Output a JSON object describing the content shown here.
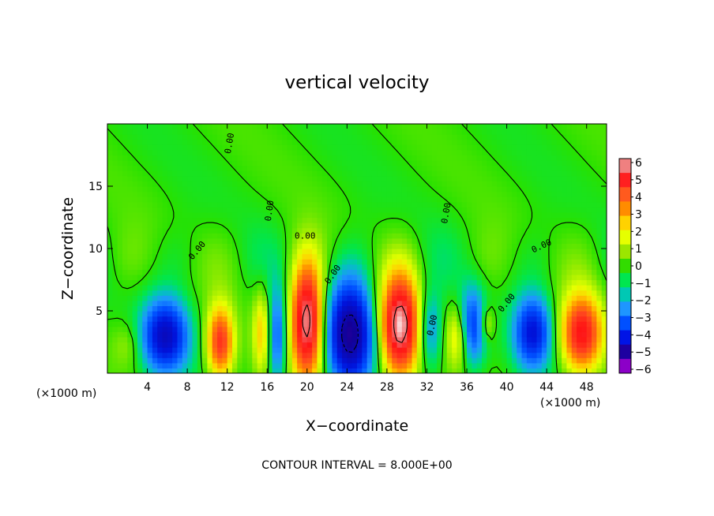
{
  "chart_data": {
    "type": "heatmap",
    "title": "vertical velocity",
    "xlabel": "X−coordinate",
    "ylabel": "Z−coordinate",
    "x_unit": "(×1000 m)",
    "xlim": [
      0,
      50
    ],
    "ylim": [
      0,
      20
    ],
    "x_ticks": [
      4,
      8,
      12,
      16,
      20,
      24,
      28,
      32,
      36,
      40,
      44,
      48
    ],
    "y_ticks": [
      5,
      10,
      15
    ],
    "colorbar": {
      "levels": [
        6,
        5,
        4,
        3,
        2,
        1,
        0,
        -1,
        -2,
        -3,
        -4,
        -5,
        -6
      ],
      "labels": [
        "6",
        "5",
        "4",
        "3",
        "2",
        "1",
        "0",
        "−1",
        "−2",
        "−3",
        "−4",
        "−5",
        "−6"
      ],
      "colors": [
        "#f08080",
        "#ff2020",
        "#ff5a1e",
        "#ff8c00",
        "#ffd200",
        "#e6ff00",
        "#9be600",
        "#32dc00",
        "#00e650",
        "#00c8b4",
        "#1e96ff",
        "#0050ff",
        "#0014e6",
        "#1e00a0",
        "#8c00c8"
      ]
    },
    "contour_interval_text": "CONTOUR INTERVAL = 8.000E+00",
    "contour_labels": [
      "0.00",
      "0.00",
      "0.00",
      "0.00",
      "0.00",
      "0.00",
      "0.00",
      "0.00",
      "0.00"
    ],
    "updrafts": [
      {
        "x": 2.0,
        "z": 2.3,
        "w": 2,
        "rx": 1.5,
        "rz": 1.8
      },
      {
        "x": 11.3,
        "z": 2.5,
        "w": 12,
        "rx": 1.3,
        "rz": 2.8
      },
      {
        "x": 15.5,
        "z": 3.3,
        "w": 6,
        "rx": 0.9,
        "rz": 3.3
      },
      {
        "x": 20.0,
        "z": 4.2,
        "w": 18,
        "rx": 1.6,
        "rz": 4.5
      },
      {
        "x": 29.3,
        "z": 3.8,
        "w": 18,
        "rx": 1.9,
        "rz": 4.0
      },
      {
        "x": 35.2,
        "z": 3.0,
        "w": 6,
        "rx": 1.2,
        "rz": 2.5
      },
      {
        "x": 38.0,
        "z": 4.0,
        "w": 4,
        "rx": 0.8,
        "rz": 1.4
      },
      {
        "x": 47.5,
        "z": 3.2,
        "w": 14,
        "rx": 2.0,
        "rz": 3.0
      }
    ],
    "downdrafts": [
      {
        "x": 5.8,
        "z": 3.0,
        "w": -14,
        "rx": 2.2,
        "rz": 2.8
      },
      {
        "x": 17.0,
        "z": 3.0,
        "w": -8,
        "rx": 1.0,
        "rz": 3.8
      },
      {
        "x": 24.3,
        "z": 3.2,
        "w": -18,
        "rx": 2.2,
        "rz": 4.0
      },
      {
        "x": 32.3,
        "z": 3.5,
        "w": -6,
        "rx": 1.2,
        "rz": 3.0
      },
      {
        "x": 36.5,
        "z": 3.7,
        "w": -10,
        "rx": 1.3,
        "rz": 3.0
      },
      {
        "x": 42.6,
        "z": 3.3,
        "w": -12,
        "rx": 1.8,
        "rz": 2.8
      }
    ]
  }
}
